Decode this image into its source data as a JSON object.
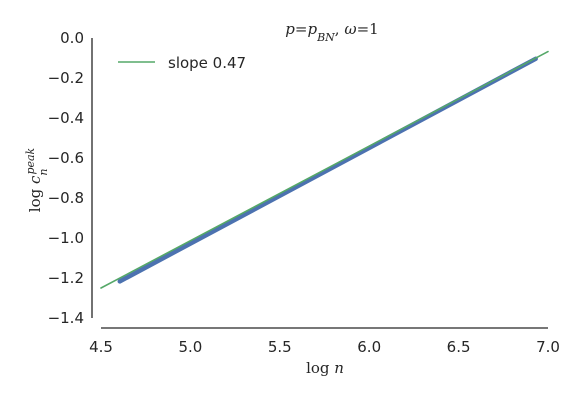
{
  "chart_data": {
    "type": "line",
    "title": "p = p_BN, ω = 1",
    "xlabel": "log n",
    "ylabel": "log c_n^peak",
    "xlim": [
      4.5,
      7.0
    ],
    "ylim": [
      -1.4,
      0.0
    ],
    "x_ticks": [
      "4.5",
      "5.0",
      "5.5",
      "6.0",
      "6.5",
      "7.0"
    ],
    "y_ticks": [
      "0.0",
      "−0.2",
      "−0.4",
      "−0.6",
      "−0.8",
      "−1.0",
      "−1.2",
      "−1.4"
    ],
    "grid": false,
    "legend_position": "top-left",
    "series": [
      {
        "style": "thick-line",
        "color": "#4c72b0",
        "x": [
          4.605,
          6.931
        ],
        "y": [
          -1.217,
          -0.104
        ]
      },
      {
        "name": "slope 0.47",
        "style": "thin-line",
        "color": "#55a868",
        "x": [
          4.5,
          7.0
        ],
        "y": [
          -1.25,
          -0.068
        ]
      }
    ]
  }
}
